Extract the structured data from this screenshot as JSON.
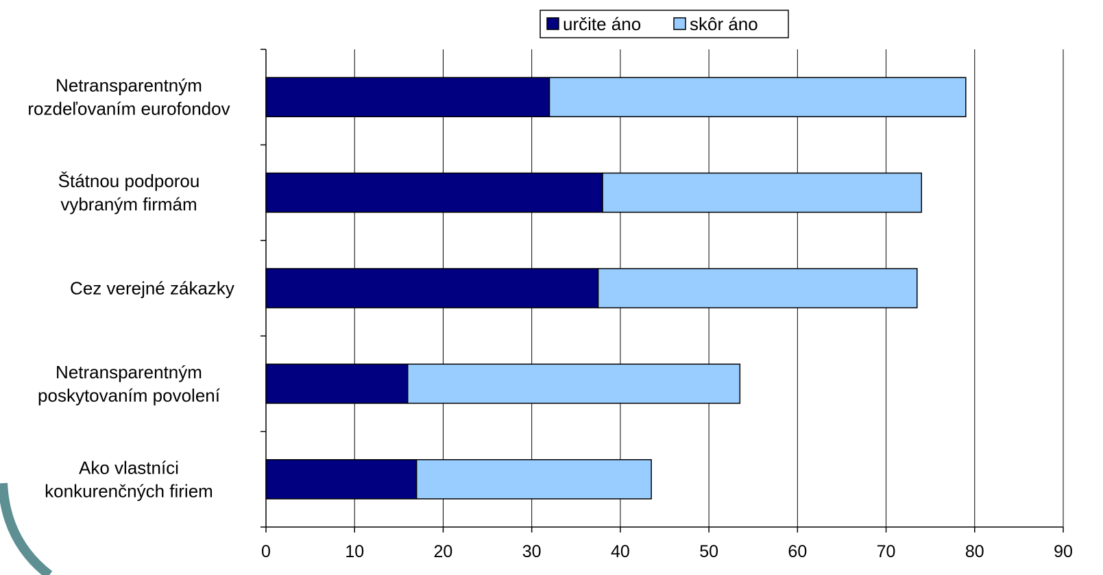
{
  "chart_data": {
    "type": "bar",
    "orientation": "horizontal",
    "stacked": true,
    "categories": [
      [
        "Netransparentným",
        "rozdeľovaním eurofondov"
      ],
      [
        "Štátnou podporou",
        "vybraným firmám"
      ],
      [
        "Cez verejné zákazky"
      ],
      [
        "Netransparentným",
        "poskytovaním povolení"
      ],
      [
        "Ako vlastníci",
        "konkurenčných firiem"
      ]
    ],
    "series": [
      {
        "name": "určite áno",
        "color": "#000080",
        "values": [
          32,
          38,
          37.5,
          16,
          17
        ]
      },
      {
        "name": "skôr áno",
        "color": "#99ccff",
        "values": [
          47,
          36,
          36,
          37.5,
          26.5
        ]
      }
    ],
    "xlim": [
      0,
      90
    ],
    "xticks": [
      0,
      10,
      20,
      30,
      40,
      50,
      60,
      70,
      80,
      90
    ],
    "grid": true,
    "legend_position": "top",
    "title": "",
    "xlabel": "",
    "ylabel": ""
  }
}
